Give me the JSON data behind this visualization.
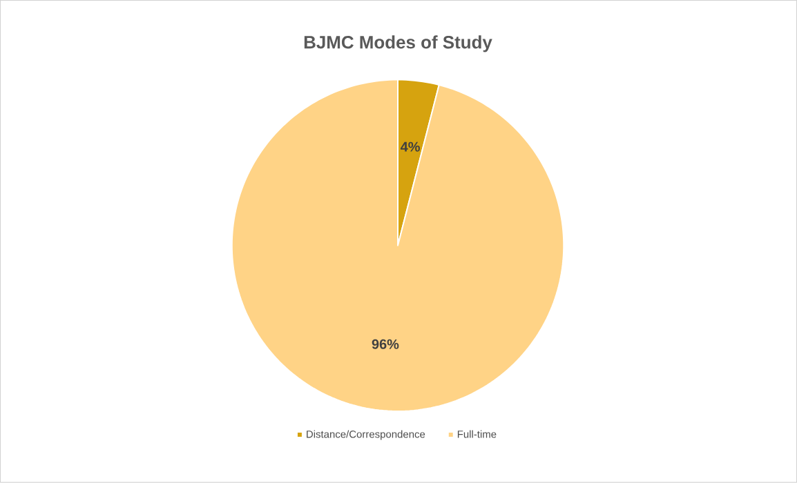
{
  "chart_data": {
    "type": "pie",
    "title": "BJMC Modes of Study",
    "categories": [
      "Distance/Correspondence",
      "Full-time"
    ],
    "values": [
      4,
      96
    ],
    "colors": [
      "#D6A30F",
      "#FFD386"
    ],
    "value_labels": [
      "4%",
      "96%"
    ],
    "legend": "bottom"
  }
}
